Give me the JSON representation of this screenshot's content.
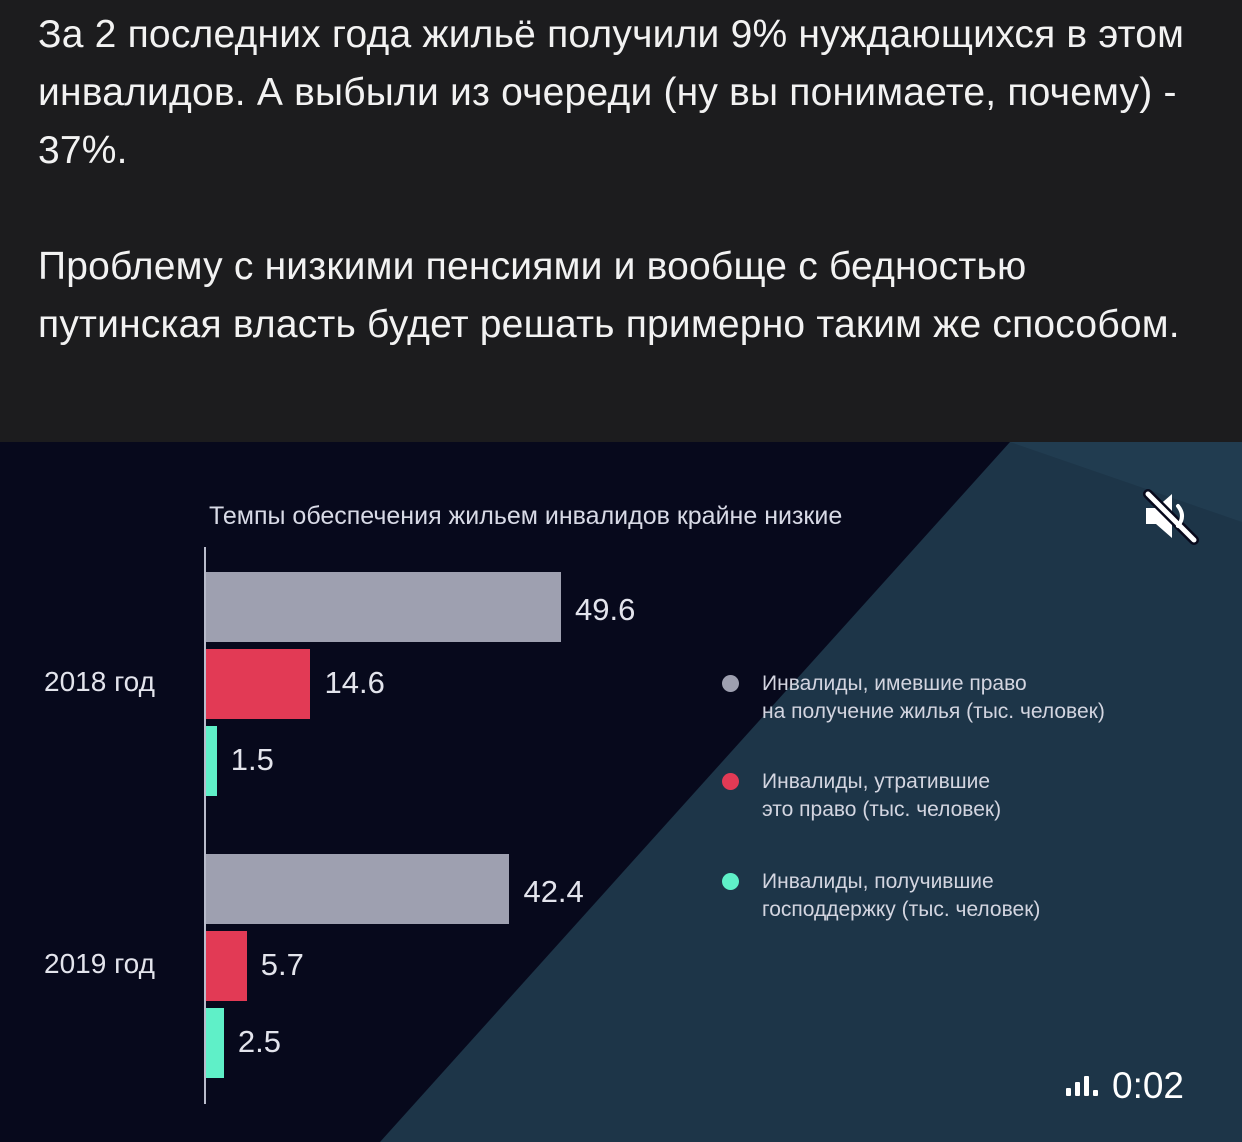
{
  "post": {
    "paragraphs": [
      "За 2 последних года жильё получили 9% нуждающихся в этом инвалидов. А выбыли из очереди (ну вы понимаете, почему) - 37%.",
      "Проблему с низкими пенсиями и вообще с бедностью путинская власть будет решать примерно таким же способом."
    ]
  },
  "video": {
    "timer": "0:02",
    "mute_icon": "speaker-muted-icon",
    "sound_icon": "audio-level-icon"
  },
  "chart_data": {
    "type": "bar",
    "orientation": "horizontal",
    "title": "Темпы обеспечения жильем инвалидов крайне низкие",
    "categories": [
      "2018 год",
      "2019 год"
    ],
    "series": [
      {
        "name": "Инвалиды, имевшие право на получение жилья (тыс. человек)",
        "color": "#9ea0b0",
        "values": [
          49.6,
          42.4
        ]
      },
      {
        "name": "Инвалиды, утратившие это право (тыс. человек)",
        "color": "#e23a55",
        "values": [
          14.6,
          5.7
        ]
      },
      {
        "name": "Инвалиды, получившие господдержку (тыс. человек)",
        "color": "#5ff0c8",
        "values": [
          1.5,
          2.5
        ]
      }
    ],
    "value_labels": [
      [
        "49.6",
        "14.6",
        "1.5"
      ],
      [
        "42.4",
        "5.7",
        "2.5"
      ]
    ],
    "legend": {
      "position": "right",
      "items": [
        {
          "line1": "Инвалиды, имевшие право",
          "line2": "на получение жилья (тыс. человек)"
        },
        {
          "line1": "Инвалиды, утратившие",
          "line2": "это право (тыс. человек)"
        },
        {
          "line1": "Инвалиды, получившие",
          "line2": "господдержку (тыс. человек)"
        }
      ]
    },
    "grid": false
  }
}
